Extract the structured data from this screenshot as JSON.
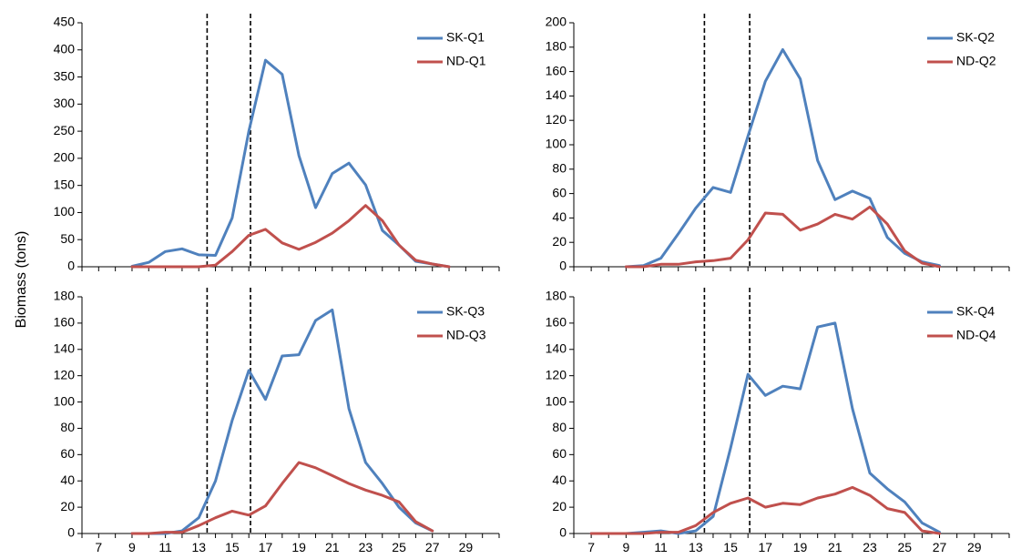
{
  "ylabel": "Biomass  (tons)",
  "colors": {
    "sk": "#4F81BD",
    "nd": "#C0504D",
    "marker": "#000000"
  },
  "chart_data": [
    {
      "type": "line",
      "panel": "top-left",
      "x": [
        9,
        10,
        11,
        12,
        13,
        14,
        15,
        16,
        17,
        18,
        19,
        20,
        21,
        22,
        23,
        24,
        25,
        26,
        27,
        28
      ],
      "series": [
        {
          "name": "SK-Q1",
          "values": [
            1,
            8,
            28,
            33,
            22,
            21,
            90,
            250,
            381,
            355,
            205,
            109,
            172,
            191,
            151,
            67,
            40,
            10,
            5,
            0
          ]
        },
        {
          "name": "ND-Q1",
          "values": [
            0,
            0,
            0,
            0,
            0,
            3,
            28,
            58,
            69,
            44,
            32,
            45,
            62,
            85,
            113,
            85,
            40,
            12,
            5,
            0
          ]
        }
      ],
      "xlim": [
        6,
        31
      ],
      "ylim": [
        0,
        450
      ],
      "xticks": [
        7,
        9,
        11,
        13,
        15,
        17,
        19,
        21,
        23,
        25,
        27,
        29
      ],
      "yticks": [
        0,
        50,
        100,
        150,
        200,
        250,
        300,
        350,
        400,
        450
      ],
      "vlines": [
        13.5,
        16.1
      ],
      "legend": "top-right"
    },
    {
      "type": "line",
      "panel": "top-right",
      "x": [
        9,
        10,
        11,
        12,
        13,
        14,
        15,
        16,
        17,
        18,
        19,
        20,
        21,
        22,
        23,
        24,
        25,
        26,
        27
      ],
      "series": [
        {
          "name": "SK-Q2",
          "values": [
            0,
            1,
            7,
            27,
            48,
            65,
            61,
            107,
            152,
            178,
            154,
            87,
            55,
            62,
            56,
            24,
            11,
            4,
            1
          ]
        },
        {
          "name": "ND-Q2",
          "values": [
            0,
            0,
            2,
            2,
            4,
            5,
            7,
            22,
            44,
            43,
            30,
            35,
            43,
            39,
            49,
            35,
            13,
            3,
            0
          ]
        }
      ],
      "xlim": [
        6,
        31
      ],
      "ylim": [
        0,
        200
      ],
      "xticks": [
        7,
        9,
        11,
        13,
        15,
        17,
        19,
        21,
        23,
        25,
        27,
        29
      ],
      "yticks": [
        0,
        20,
        40,
        60,
        80,
        100,
        120,
        140,
        160,
        180,
        200
      ],
      "vlines": [
        13.5,
        16.1
      ],
      "legend": "top-right"
    },
    {
      "type": "line",
      "panel": "bottom-left",
      "x": [
        9,
        10,
        11,
        12,
        13,
        14,
        15,
        16,
        17,
        18,
        19,
        20,
        21,
        22,
        23,
        24,
        25,
        26,
        27
      ],
      "series": [
        {
          "name": "SK-Q3",
          "values": [
            0,
            0,
            0,
            2,
            12,
            40,
            86,
            124,
            102,
            135,
            136,
            162,
            170,
            95,
            54,
            38,
            20,
            8,
            2
          ]
        },
        {
          "name": "ND-Q3",
          "values": [
            0,
            0,
            1,
            1,
            6,
            12,
            17,
            14,
            21,
            38,
            54,
            50,
            44,
            38,
            33,
            29,
            24,
            9,
            2
          ]
        }
      ],
      "xlim": [
        6,
        31
      ],
      "ylim": [
        0,
        180
      ],
      "xticks": [
        7,
        9,
        11,
        13,
        15,
        17,
        19,
        21,
        23,
        25,
        27,
        29
      ],
      "yticks": [
        0,
        20,
        40,
        60,
        80,
        100,
        120,
        140,
        160,
        180
      ],
      "vlines": [
        13.5,
        16.1
      ],
      "legend": "top-right"
    },
    {
      "type": "line",
      "panel": "bottom-right",
      "x": [
        7,
        8,
        9,
        10,
        11,
        12,
        13,
        14,
        15,
        16,
        17,
        18,
        19,
        20,
        21,
        22,
        23,
        24,
        25,
        26,
        27
      ],
      "series": [
        {
          "name": "SK-Q4",
          "values": [
            0,
            0,
            0,
            1,
            2,
            0,
            2,
            13,
            65,
            121,
            105,
            112,
            110,
            157,
            160,
            95,
            46,
            34,
            24,
            8,
            1
          ]
        },
        {
          "name": "ND-Q4",
          "values": [
            0,
            0,
            0,
            0,
            1,
            1,
            6,
            16,
            23,
            27,
            20,
            23,
            22,
            27,
            30,
            35,
            29,
            19,
            16,
            2,
            0
          ]
        }
      ],
      "xlim": [
        6,
        31
      ],
      "ylim": [
        0,
        180
      ],
      "xticks": [
        7,
        9,
        11,
        13,
        15,
        17,
        19,
        21,
        23,
        25,
        27,
        29
      ],
      "yticks": [
        0,
        20,
        40,
        60,
        80,
        100,
        120,
        140,
        160,
        180
      ],
      "vlines": [
        13.5,
        16.1
      ],
      "legend": "top-right"
    }
  ]
}
